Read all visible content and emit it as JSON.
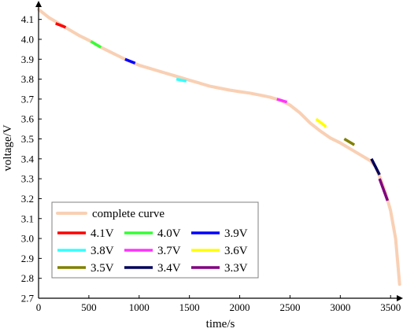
{
  "chart_data": {
    "type": "line",
    "xlabel": "time/s",
    "ylabel": "voltage/V",
    "xlim": [
      0,
      3600
    ],
    "ylim": [
      2.7,
      4.15
    ],
    "x_ticks": [
      0,
      500,
      1000,
      1500,
      2000,
      2500,
      3000,
      3500
    ],
    "y_ticks": [
      2.7,
      2.8,
      2.9,
      3.0,
      3.1,
      3.2,
      3.3,
      3.4,
      3.5,
      3.6,
      3.7,
      3.8,
      3.9,
      4.0,
      4.1
    ],
    "grid": false,
    "legend_position": "bottom-left",
    "curve": {
      "name": "complete curve",
      "color": "#f9d0b4",
      "x": [
        0,
        100,
        200,
        300,
        400,
        500,
        600,
        700,
        800,
        900,
        1000,
        1100,
        1200,
        1300,
        1400,
        1500,
        1600,
        1700,
        1800,
        1900,
        2000,
        2100,
        2200,
        2300,
        2400,
        2500,
        2600,
        2700,
        2800,
        2900,
        3000,
        3100,
        3200,
        3300,
        3350,
        3400,
        3450,
        3500,
        3550,
        3590
      ],
      "y": [
        4.15,
        4.11,
        4.08,
        4.05,
        4.02,
        3.995,
        3.965,
        3.94,
        3.915,
        3.89,
        3.87,
        3.855,
        3.84,
        3.825,
        3.81,
        3.795,
        3.78,
        3.765,
        3.755,
        3.745,
        3.737,
        3.73,
        3.72,
        3.71,
        3.695,
        3.67,
        3.63,
        3.58,
        3.54,
        3.505,
        3.48,
        3.45,
        3.42,
        3.39,
        3.36,
        3.3,
        3.23,
        3.14,
        3.0,
        2.77
      ]
    },
    "series": [
      {
        "name": "4.1V",
        "color": "#ff0000",
        "x": [
          170,
          270
        ],
        "y": [
          4.08,
          4.06
        ]
      },
      {
        "name": "4.0V",
        "color": "#33ff33",
        "x": [
          520,
          620
        ],
        "y": [
          3.99,
          3.96
        ]
      },
      {
        "name": "3.9V",
        "color": "#0000ff",
        "x": [
          860,
          960
        ],
        "y": [
          3.9,
          3.88
        ]
      },
      {
        "name": "3.8V",
        "color": "#33ffff",
        "x": [
          1370,
          1470
        ],
        "y": [
          3.8,
          3.79
        ]
      },
      {
        "name": "3.7V",
        "color": "#ff33ff",
        "x": [
          2370,
          2470
        ],
        "y": [
          3.7,
          3.685
        ]
      },
      {
        "name": "3.6V",
        "color": "#ffff00",
        "x": [
          2760,
          2860
        ],
        "y": [
          3.6,
          3.56
        ]
      },
      {
        "name": "3.5V",
        "color": "#808000",
        "x": [
          3040,
          3140
        ],
        "y": [
          3.5,
          3.47
        ]
      },
      {
        "name": "3.4V",
        "color": "#00005a",
        "x": [
          3310,
          3390
        ],
        "y": [
          3.4,
          3.32
        ]
      },
      {
        "name": "3.3V",
        "color": "#800080",
        "x": [
          3390,
          3470
        ],
        "y": [
          3.3,
          3.19
        ]
      }
    ]
  }
}
